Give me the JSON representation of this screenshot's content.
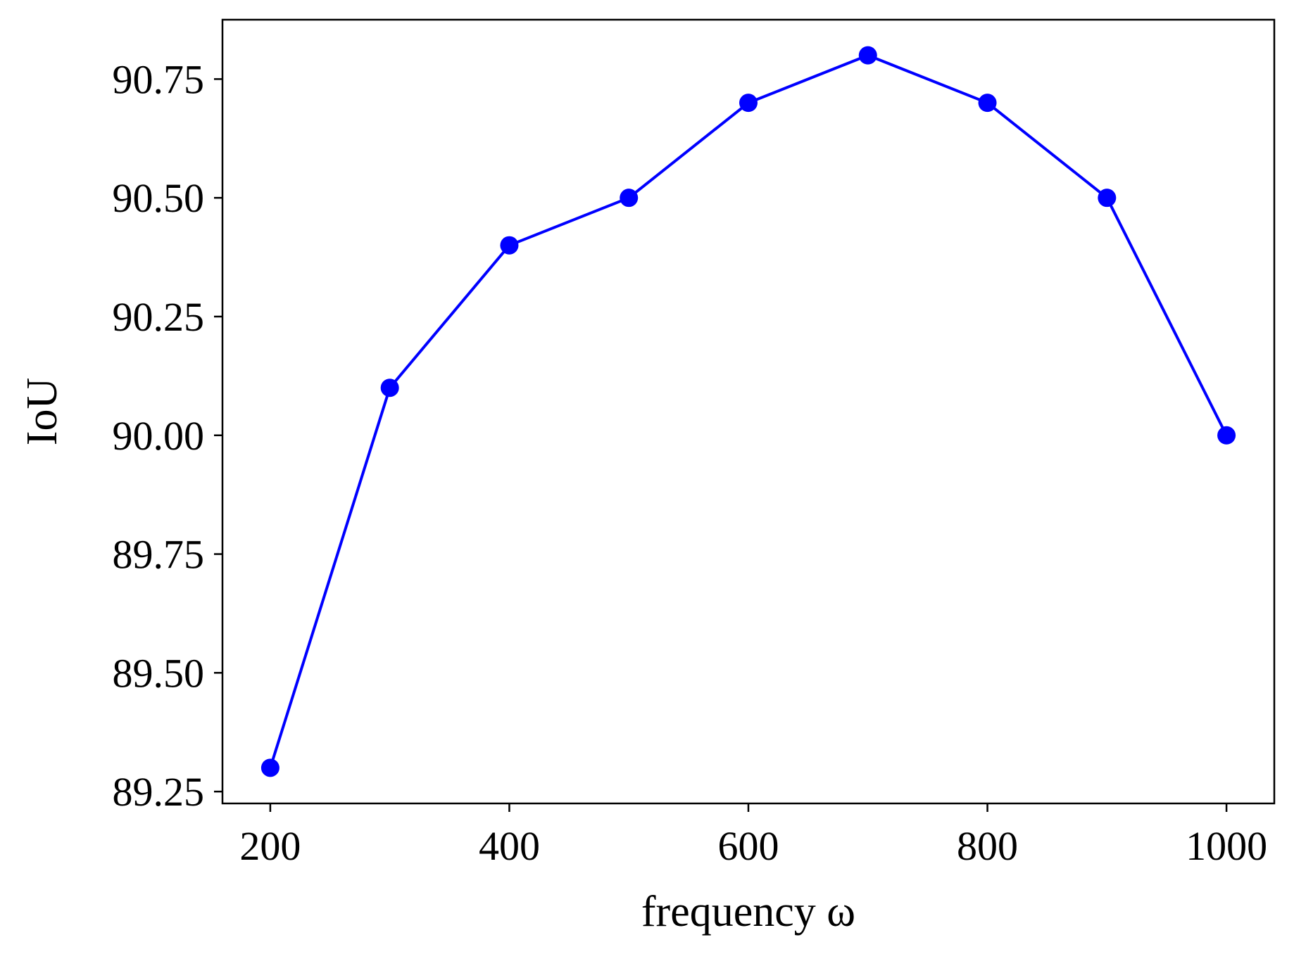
{
  "chart_data": {
    "type": "line",
    "title": "",
    "xlabel": "frequency ω",
    "ylabel": "IoU",
    "x": [
      200,
      300,
      400,
      500,
      600,
      700,
      800,
      900,
      1000
    ],
    "series": [
      {
        "values": [
          89.3,
          90.1,
          90.4,
          90.5,
          90.7,
          90.8,
          90.7,
          90.5,
          90.0
        ],
        "color": "#0000ff",
        "marker": "circle"
      }
    ],
    "xlim": [
      160,
      1040
    ],
    "ylim": [
      89.225,
      90.875
    ],
    "xticks": [
      200,
      400,
      600,
      800,
      1000
    ],
    "yticks": [
      89.25,
      89.5,
      89.75,
      90.0,
      90.25,
      90.5,
      90.75
    ],
    "xtick_labels": [
      "200",
      "400",
      "600",
      "800",
      "1000"
    ],
    "ytick_labels": [
      "89.25",
      "89.50",
      "89.75",
      "90.00",
      "90.25",
      "90.50",
      "90.75"
    ],
    "grid": false,
    "legend": "none"
  }
}
